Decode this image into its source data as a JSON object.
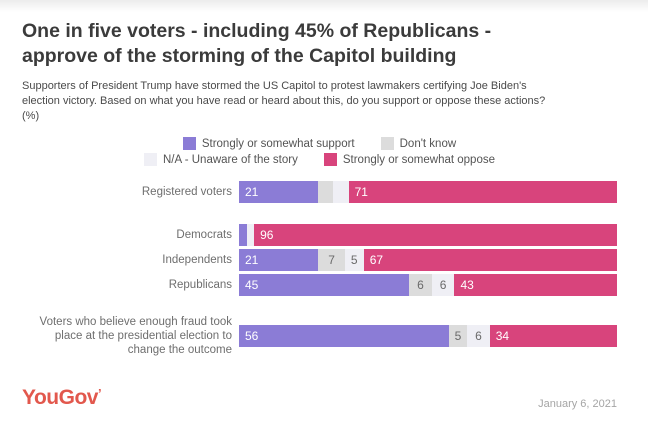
{
  "page": {
    "title_lines": [
      "One in five voters - including 45% of Republicans -",
      "approve of the storming of the Capitol building"
    ],
    "subtitle_lines": [
      "Supporters of President Trump have stormed the US Capitol to protest lawmakers certifying Joe Biden's",
      "election victory. Based on what you have read or heard about this, do you support or oppose these actions?",
      "(%)"
    ]
  },
  "legend": {
    "rows": [
      [
        {
          "label": "Strongly or somewhat support",
          "color": "#8b7cd6"
        },
        {
          "label": "Don't know",
          "color": "#dcdcdc"
        }
      ],
      [
        {
          "label": "N/A - Unaware of the story",
          "color": "#efeff5"
        },
        {
          "label": "Strongly or somewhat oppose",
          "color": "#d8447c"
        }
      ]
    ]
  },
  "chart_data": {
    "type": "bar",
    "orientation": "horizontal",
    "stacked": true,
    "unit": "%",
    "x_range": [
      0,
      100
    ],
    "grid": false,
    "legend_position": "top-center",
    "title": "One in five voters - including 45% of Republicans - approve of the storming of the Capitol building",
    "categories": [
      "Registered voters",
      "Democrats",
      "Independents",
      "Republicans",
      "Voters who believe enough fraud took place at the presidential election to change the outcome"
    ],
    "series": [
      {
        "name": "Strongly or somewhat support",
        "color": "#8b7cd6",
        "label_style": "light",
        "values": [
          21,
          2,
          21,
          45,
          56
        ]
      },
      {
        "name": "Don't know",
        "color": "#dcdcdc",
        "label_style": "dark",
        "values": [
          4,
          0,
          7,
          6,
          5
        ]
      },
      {
        "name": "N/A - Unaware of the story",
        "color": "#efeff5",
        "label_style": "dark",
        "values": [
          4,
          2,
          5,
          6,
          6
        ]
      },
      {
        "name": "Strongly or somewhat oppose",
        "color": "#d8447c",
        "label_style": "light",
        "values": [
          71,
          96,
          67,
          43,
          34
        ]
      }
    ],
    "value_label_min": 5,
    "row_gaps_before": {
      "1": 21,
      "4": 19
    }
  },
  "footer": {
    "logo_text": "YouGov",
    "logo_mark": "’",
    "date": "January 6, 2021"
  }
}
